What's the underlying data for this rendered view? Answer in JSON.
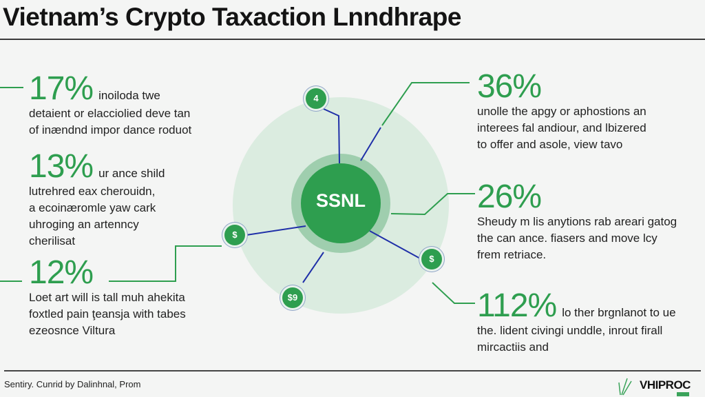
{
  "title": "Vietnam’s Crypto Taxaction Lnndhrape",
  "colors": {
    "accent": "#2e9e4f",
    "connector_blue": "#1f2fa8",
    "halo": "#d6eadc"
  },
  "center": {
    "label": "SSNL"
  },
  "nodes": [
    {
      "label": "4",
      "icon": "number-node"
    },
    {
      "label": "$",
      "icon": "dollar-icon"
    },
    {
      "label": "$",
      "icon": "dollar-icon"
    },
    {
      "label": "$9",
      "icon": "dollar-icon"
    }
  ],
  "left_stats": [
    {
      "value": "17%",
      "lead": "inoiloda twe",
      "lines": [
        "detaient or elacciolied deve tan",
        "of inændnd impor dance roduot"
      ]
    },
    {
      "value": "13%",
      "lead": "ur ance shild",
      "lines": [
        "lutrehred eax cherouidn,",
        "a ecoinæromle yaw cark",
        "uhroging an artenncy",
        "cherilisat"
      ]
    },
    {
      "value": "12%",
      "lead": "",
      "lines": [
        "Loet art will is tall muh ahekita",
        "foxtled pain ţeansja with tabes",
        "ezeosnce Viltura"
      ]
    }
  ],
  "right_stats": [
    {
      "value": "36%",
      "lead": "",
      "lines": [
        "unolle the apgy or aphostions an",
        "interees fal andiour, and lbizered",
        "to offer and asole, view tavo"
      ]
    },
    {
      "value": "26%",
      "lead": "",
      "lines": [
        "Sheudy m lis anytions rab areari gatog",
        "the can ance. fiasers and move lcy",
        "frem retriace."
      ]
    },
    {
      "value": "112%",
      "lead": "lo ther brgnlanot to ue",
      "lines": [
        "the. lident civingi unddle, inrout firall",
        "mircactiis and"
      ]
    }
  ],
  "footer": {
    "credit": "Sentiry. Cunrid by Dalinhnal, Prom",
    "logo": "VHIPROC"
  }
}
